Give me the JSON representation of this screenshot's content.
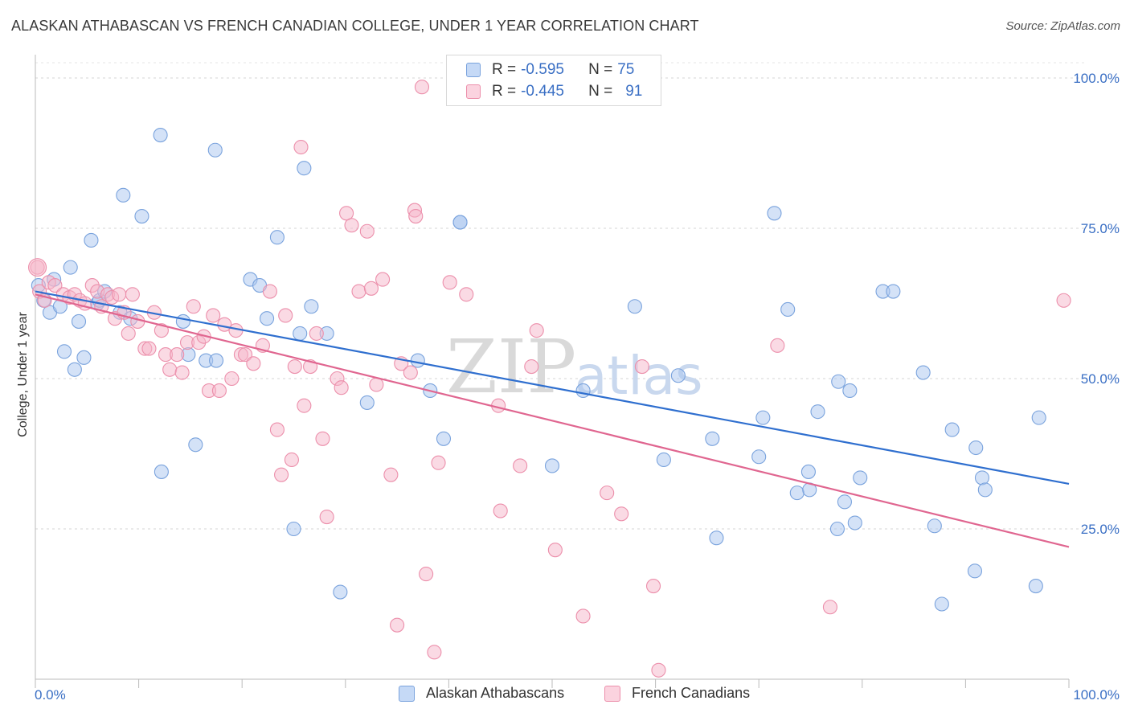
{
  "header": {
    "title": "ALASKAN ATHABASCAN VS FRENCH CANADIAN COLLEGE, UNDER 1 YEAR CORRELATION CHART",
    "source": "Source: ZipAtlas.com"
  },
  "legend": {
    "rows": [
      {
        "r_label": "R =",
        "r_value": "-0.595",
        "n_label": "N =",
        "n_value": "75",
        "color": "#a9c6f0"
      },
      {
        "r_label": "R =",
        "r_value": "-0.445",
        "n_label": "N =",
        "n_value": "91",
        "color": "#f6b6c9"
      }
    ]
  },
  "watermark": {
    "zip": "ZIP",
    "atlas": "atlas"
  },
  "chart_data": {
    "type": "scatter",
    "title": "ALASKAN ATHABASCAN VS FRENCH CANADIAN COLLEGE, UNDER 1 YEAR CORRELATION CHART",
    "xlabel": "",
    "ylabel": "College, Under 1 year",
    "xlim": [
      0,
      100
    ],
    "ylim": [
      0,
      100
    ],
    "x_tick_labels": [
      "0.0%",
      "100.0%"
    ],
    "y_tick_labels": [
      "100.0%",
      "75.0%",
      "50.0%",
      "25.0%"
    ],
    "y_ticks": [
      100,
      75,
      50,
      25
    ],
    "grid": true,
    "legend_position": "top-center",
    "series": [
      {
        "name": "Alaskan Athabascans",
        "color": "#a9c6f0",
        "edge": "#7aa3dd",
        "line_color": "#2f6fcf",
        "trend": [
          [
            0,
            64.5
          ],
          [
            100,
            32.5
          ]
        ],
        "points": [
          [
            0.3,
            65.5
          ],
          [
            0.8,
            63
          ],
          [
            1.4,
            61
          ],
          [
            1.8,
            66.5
          ],
          [
            2.4,
            62
          ],
          [
            2.8,
            54.5
          ],
          [
            3.4,
            68.5
          ],
          [
            3.8,
            51.5
          ],
          [
            4.2,
            59.5
          ],
          [
            4.7,
            53.5
          ],
          [
            5.4,
            73
          ],
          [
            6.0,
            62.5
          ],
          [
            6.2,
            63
          ],
          [
            6.7,
            64.5
          ],
          [
            8.2,
            61
          ],
          [
            8.5,
            80.5
          ],
          [
            9.2,
            60
          ],
          [
            10.3,
            77
          ],
          [
            12.1,
            90.5
          ],
          [
            12.2,
            34.5
          ],
          [
            14.3,
            59.5
          ],
          [
            14.8,
            54
          ],
          [
            15.5,
            39
          ],
          [
            16.5,
            53
          ],
          [
            17.5,
            53
          ],
          [
            17.4,
            88
          ],
          [
            20.8,
            66.5
          ],
          [
            21.7,
            65.5
          ],
          [
            22.4,
            60
          ],
          [
            23.4,
            73.5
          ],
          [
            25.0,
            25
          ],
          [
            25.6,
            57.5
          ],
          [
            26.0,
            85
          ],
          [
            26.7,
            62
          ],
          [
            28.2,
            57.5
          ],
          [
            29.5,
            14.5
          ],
          [
            32.1,
            46
          ],
          [
            37.0,
            53
          ],
          [
            38.2,
            48
          ],
          [
            39.5,
            40
          ],
          [
            41.1,
            76
          ],
          [
            50.0,
            35.5
          ],
          [
            53.0,
            48
          ],
          [
            58.0,
            62
          ],
          [
            60.8,
            36.5
          ],
          [
            62.2,
            50.5
          ],
          [
            65.5,
            40
          ],
          [
            65.9,
            23.5
          ],
          [
            70.0,
            37
          ],
          [
            70.4,
            43.5
          ],
          [
            71.5,
            77.5
          ],
          [
            72.8,
            61.5
          ],
          [
            73.7,
            31
          ],
          [
            74.8,
            34.5
          ],
          [
            74.9,
            31.5
          ],
          [
            75.7,
            44.5
          ],
          [
            77.6,
            25
          ],
          [
            77.7,
            49.5
          ],
          [
            78.3,
            29.5
          ],
          [
            78.8,
            48
          ],
          [
            79.3,
            26
          ],
          [
            79.8,
            33.5
          ],
          [
            82.0,
            64.5
          ],
          [
            83.0,
            64.5
          ],
          [
            85.9,
            51
          ],
          [
            87.0,
            25.5
          ],
          [
            87.7,
            12.5
          ],
          [
            88.7,
            41.5
          ],
          [
            90.9,
            18
          ],
          [
            91.0,
            38.5
          ],
          [
            91.6,
            33.5
          ],
          [
            91.9,
            31.5
          ],
          [
            96.8,
            15.5
          ],
          [
            97.1,
            43.5
          ],
          [
            41.1,
            76
          ]
        ]
      },
      {
        "name": "French Canadians",
        "color": "#f6b6c9",
        "edge": "#ec8fab",
        "line_color": "#e06690",
        "trend": [
          [
            0,
            64
          ],
          [
            100,
            22
          ]
        ],
        "points": [
          [
            0.2,
            68.5
          ],
          [
            0.4,
            64.5
          ],
          [
            0.9,
            63
          ],
          [
            1.3,
            66
          ],
          [
            1.9,
            65.5
          ],
          [
            2.7,
            64
          ],
          [
            3.3,
            63.5
          ],
          [
            3.8,
            64
          ],
          [
            4.3,
            63
          ],
          [
            4.8,
            62.5
          ],
          [
            5.5,
            65.5
          ],
          [
            6.0,
            64.5
          ],
          [
            6.4,
            62
          ],
          [
            7.0,
            64
          ],
          [
            7.4,
            63.5
          ],
          [
            7.7,
            60
          ],
          [
            8.1,
            64
          ],
          [
            8.6,
            61
          ],
          [
            9.0,
            57.5
          ],
          [
            9.4,
            64
          ],
          [
            9.9,
            59.5
          ],
          [
            10.6,
            55
          ],
          [
            11.0,
            55
          ],
          [
            11.5,
            61
          ],
          [
            12.2,
            58
          ],
          [
            12.6,
            54
          ],
          [
            13.0,
            51.5
          ],
          [
            13.7,
            54
          ],
          [
            14.2,
            51
          ],
          [
            14.7,
            56
          ],
          [
            15.3,
            62
          ],
          [
            15.8,
            56
          ],
          [
            16.3,
            57
          ],
          [
            16.8,
            48
          ],
          [
            17.2,
            60.5
          ],
          [
            17.8,
            48
          ],
          [
            18.3,
            59
          ],
          [
            19.0,
            50
          ],
          [
            19.4,
            58
          ],
          [
            19.9,
            54
          ],
          [
            20.3,
            54
          ],
          [
            21.1,
            52.5
          ],
          [
            22.0,
            55.5
          ],
          [
            22.7,
            64.5
          ],
          [
            23.4,
            41.5
          ],
          [
            23.8,
            34
          ],
          [
            24.2,
            60.5
          ],
          [
            24.8,
            36.5
          ],
          [
            25.1,
            52
          ],
          [
            25.7,
            88.5
          ],
          [
            26.0,
            45.5
          ],
          [
            26.6,
            52
          ],
          [
            27.2,
            57.5
          ],
          [
            27.8,
            40
          ],
          [
            28.2,
            27
          ],
          [
            29.2,
            50
          ],
          [
            29.6,
            48.5
          ],
          [
            30.1,
            77.5
          ],
          [
            30.6,
            75.5
          ],
          [
            31.3,
            64.5
          ],
          [
            32.1,
            74.5
          ],
          [
            32.5,
            65
          ],
          [
            33.0,
            49
          ],
          [
            33.6,
            66.5
          ],
          [
            34.4,
            34
          ],
          [
            35.0,
            9
          ],
          [
            35.4,
            52.5
          ],
          [
            36.3,
            51
          ],
          [
            36.7,
            78
          ],
          [
            36.8,
            77
          ],
          [
            37.4,
            98.5
          ],
          [
            37.8,
            17.5
          ],
          [
            38.6,
            4.5
          ],
          [
            39.0,
            36
          ],
          [
            40.1,
            66
          ],
          [
            41.7,
            64
          ],
          [
            44.8,
            45.5
          ],
          [
            45.0,
            28
          ],
          [
            46.9,
            35.5
          ],
          [
            48.0,
            52
          ],
          [
            48.5,
            58
          ],
          [
            50.3,
            21.5
          ],
          [
            53.0,
            10.5
          ],
          [
            55.3,
            31
          ],
          [
            56.7,
            27.5
          ],
          [
            58.7,
            52
          ],
          [
            59.8,
            15.5
          ],
          [
            60.3,
            1.5
          ],
          [
            71.8,
            55.5
          ],
          [
            76.9,
            12
          ],
          [
            99.5,
            63
          ]
        ]
      }
    ]
  },
  "bottom_legend": [
    {
      "label": "Alaskan Athabascans",
      "color": "#a9c6f0",
      "edge": "#7aa3dd"
    },
    {
      "label": "French Canadians",
      "color": "#f6b6c9",
      "edge": "#ec8fab"
    }
  ]
}
